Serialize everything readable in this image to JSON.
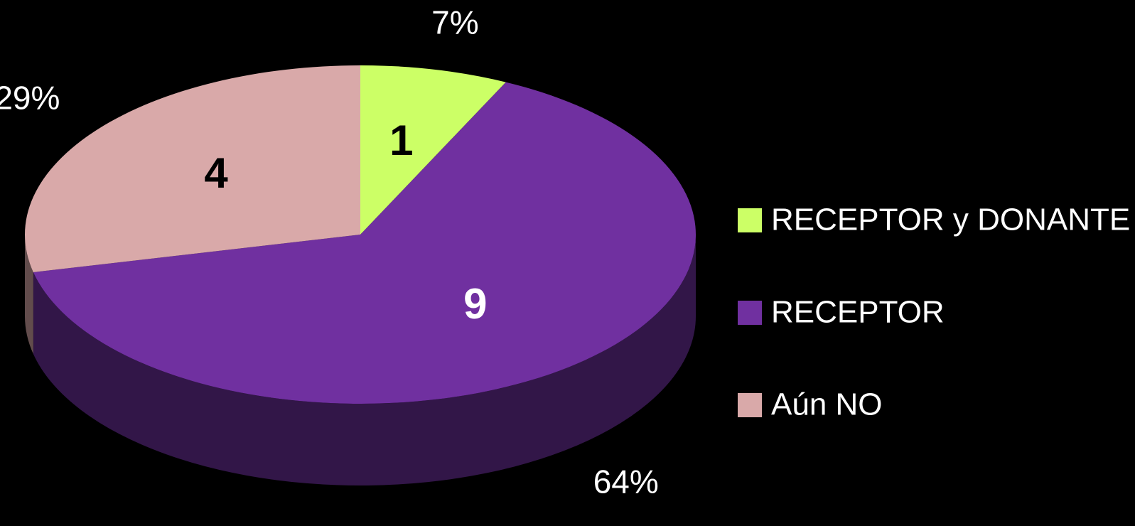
{
  "chart_data": {
    "type": "pie",
    "categories": [
      "RECEPTOR y DONANTE",
      "RECEPTOR",
      "Aún NO"
    ],
    "values": [
      1,
      9,
      4
    ],
    "percent_labels": [
      "7%",
      "64%",
      "29%"
    ],
    "colors": [
      "#ccff66",
      "#7030a0",
      "#d9a9a9"
    ],
    "legend": "right",
    "style": "3d"
  }
}
